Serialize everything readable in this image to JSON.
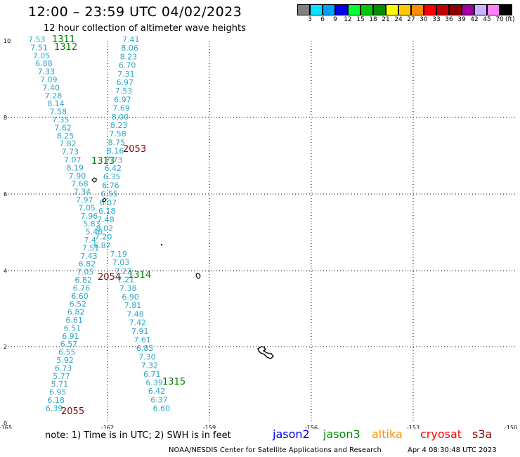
{
  "header": {
    "title": "12:00 – 23:59 UTC 04/02/2023",
    "subtitle": "12 hour collection of altimeter wave heights"
  },
  "colorbar": {
    "colors": [
      "#808080",
      "#00e5ff",
      "#00a0ff",
      "#0000e8",
      "#00ff33",
      "#00c800",
      "#008c00",
      "#ffff00",
      "#ffc800",
      "#ff8c00",
      "#ff0000",
      "#c00000",
      "#8b0000",
      "#a000a0",
      "#c8b4ff",
      "#ff80ff",
      "#000000"
    ],
    "labels": [
      "3",
      "6",
      "9",
      "12",
      "15",
      "18",
      "21",
      "24",
      "27",
      "30",
      "33",
      "36",
      "39",
      "42",
      "45",
      "70"
    ],
    "unit": "(ft)"
  },
  "axes": {
    "x_ticks": [
      "-165",
      "-162",
      "-159",
      "-156",
      "-153",
      "-150"
    ],
    "y_ticks": [
      "0",
      "2",
      "4",
      "6",
      "8",
      "10"
    ]
  },
  "passes": [
    {
      "label": "1311",
      "color": "green"
    },
    {
      "label": "1312",
      "color": "green"
    },
    {
      "label": "2053",
      "color": "dark"
    },
    {
      "label": "1313",
      "color": "green"
    },
    {
      "label": "2054",
      "color": "dark"
    },
    {
      "label": "1314",
      "color": "green"
    },
    {
      "label": "1315",
      "color": "green"
    },
    {
      "label": "2055",
      "color": "dark"
    }
  ],
  "track_left": [
    "7.53",
    "7.51",
    "7.05",
    "6.88",
    "7.33",
    "7.09",
    "7.40",
    "7.28",
    "8.14",
    "7.58",
    "7.35",
    "7.62",
    "8.25",
    "7.82",
    "7.73",
    "7.07",
    "8.19",
    "7.90",
    "7.68",
    "7.34",
    "7.97",
    "7.05",
    "7.96",
    "5.83",
    "5.46",
    "7.4",
    "7.51",
    "7.43",
    "6.82",
    "7.05",
    "6.82",
    "6.76",
    "6.60",
    "6.52",
    "6.82",
    "6.61",
    "6.51",
    "6.91",
    "6.57",
    "6.55",
    "5.92",
    "6.73",
    "5.77",
    "5.71",
    "6.95",
    "6.18",
    "6.39"
  ],
  "track_right": [
    "7.41",
    "8.06",
    "8.23",
    "6.70",
    "7.31",
    "6.97",
    "7.53",
    "6.97",
    "7.69",
    "8.00",
    "8.23",
    "7.58",
    "8.75",
    "8.16",
    "7.73",
    "6.42",
    "6.35",
    "6.76",
    "6.55",
    "6.07",
    "6.18",
    "7.48",
    "8.02",
    "7.20",
    "6.87",
    "7.19",
    "7.03",
    "7.22",
    "7.21",
    "7.38",
    "6.90",
    "7.81",
    "7.48",
    "7.42",
    "7.91",
    "7.61",
    "6.83",
    "7.30",
    "7.32",
    "6.71",
    "6.39",
    "6.42",
    "6.37",
    "6.60"
  ],
  "note": "note:  1) Time is in UTC;  2) SWH is in feet",
  "legend": [
    {
      "name": "jason2",
      "color": "#0000e8"
    },
    {
      "name": "jason3",
      "color": "#008c00"
    },
    {
      "name": "altika",
      "color": "#ff8c00"
    },
    {
      "name": "cryosat",
      "color": "#ff0000"
    },
    {
      "name": "s3a",
      "color": "#8b0000"
    }
  ],
  "footer": {
    "credit": "NOAA/NESDIS Center for Satellite Applications and Research",
    "timestamp": "Apr  4 08:30:48 UTC 2023"
  }
}
